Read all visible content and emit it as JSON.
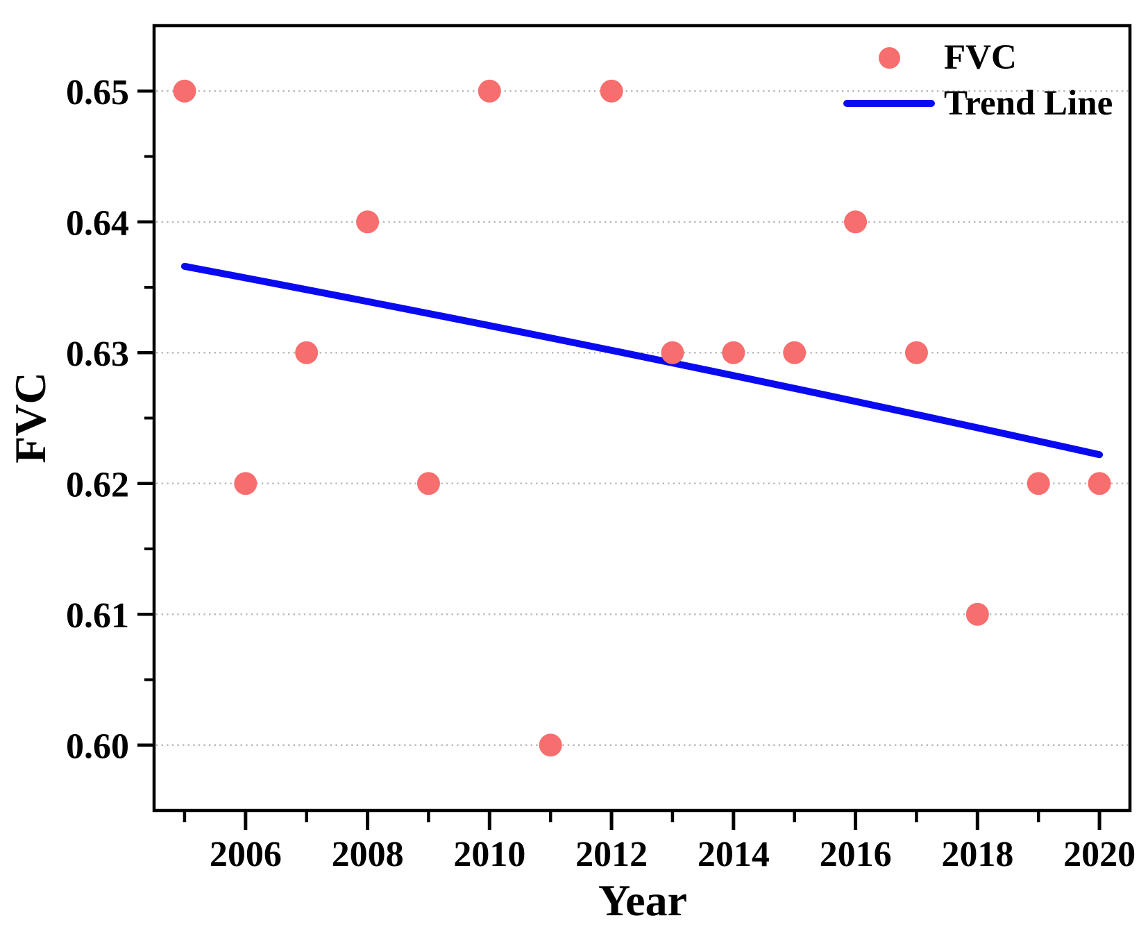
{
  "chart_data": {
    "type": "scatter",
    "title": "",
    "xlabel": "Year",
    "ylabel": "FVC",
    "xlim": [
      2004.5,
      2020.5
    ],
    "ylim": [
      0.595,
      0.655
    ],
    "grid": {
      "horizontal_dotted": true,
      "color": "#bababa"
    },
    "axis_color": "#000000",
    "x": [
      2005,
      2006,
      2007,
      2008,
      2009,
      2010,
      2011,
      2012,
      2013,
      2014,
      2015,
      2016,
      2017,
      2018,
      2019,
      2020
    ],
    "series": [
      {
        "name": "FVC",
        "type": "scatter",
        "color": "#f76e6e",
        "values": [
          0.65,
          0.62,
          0.63,
          0.64,
          0.62,
          0.65,
          0.6,
          0.65,
          0.63,
          0.63,
          0.63,
          0.64,
          0.63,
          0.61,
          0.62,
          0.62
        ]
      },
      {
        "name": "Trend Line",
        "type": "line",
        "color": "#0a0af0",
        "points": {
          "x": [
            2005,
            2012.5,
            2020
          ],
          "y": [
            0.6366,
            0.6297,
            0.6222
          ]
        }
      }
    ],
    "x_ticks": {
      "major": [
        2006,
        2008,
        2010,
        2012,
        2014,
        2016,
        2018,
        2020
      ],
      "major_labels": [
        "2006",
        "2008",
        "2010",
        "2012",
        "2014",
        "2016",
        "2018",
        "2020"
      ],
      "minor": [
        2005,
        2007,
        2009,
        2011,
        2013,
        2015,
        2017,
        2019
      ]
    },
    "y_ticks": {
      "major": [
        0.6,
        0.61,
        0.62,
        0.63,
        0.64,
        0.65
      ],
      "major_labels": [
        "0.60",
        "0.61",
        "0.62",
        "0.63",
        "0.64",
        "0.65"
      ],
      "minor": [
        0.605,
        0.615,
        0.625,
        0.635,
        0.645
      ]
    },
    "legend": {
      "position": "top-right",
      "items": [
        "FVC",
        "Trend Line"
      ]
    }
  }
}
